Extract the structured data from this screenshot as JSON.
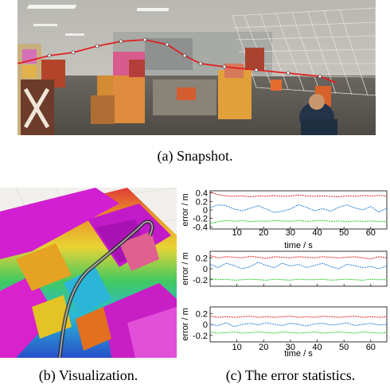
{
  "captions": {
    "a": "(a)  Snapshot.",
    "b": "(b)  Visualization.",
    "c": "(c)  The error statistics."
  },
  "colors": {
    "x_axis_error": "#e0201c",
    "y_axis_error": "#2a7fd6",
    "z_axis_error": "#22cc22",
    "trajectory": "#e02020"
  },
  "icons": [
    "photo-snapshot",
    "3d-map-visualization"
  ],
  "chart_data": [
    {
      "type": "line",
      "xlabel": "time / s",
      "ylabel": "error / m",
      "xticks": [
        "10",
        "20",
        "30",
        "40",
        "50",
        "60"
      ],
      "xlim": [
        0,
        66
      ],
      "yticks": [
        "0.4",
        "0.2",
        "0",
        "-0.2",
        "-0.4"
      ],
      "ylim": [
        -0.45,
        0.45
      ],
      "show_xticklabels": true,
      "series": [
        {
          "color": "#e0201c",
          "x": [
            0,
            3,
            6,
            9,
            12,
            15,
            18,
            21,
            24,
            27,
            30,
            33,
            36,
            39,
            42,
            45,
            48,
            51,
            54,
            57,
            60,
            63,
            66
          ],
          "values": [
            0.42,
            0.36,
            0.33,
            0.32,
            0.33,
            0.31,
            0.33,
            0.32,
            0.34,
            0.32,
            0.33,
            0.35,
            0.33,
            0.32,
            0.33,
            0.32,
            0.31,
            0.33,
            0.32,
            0.34,
            0.33,
            0.34,
            0.33
          ]
        },
        {
          "color": "#2a7fd6",
          "x": [
            0,
            3,
            6,
            9,
            12,
            15,
            18,
            21,
            24,
            27,
            30,
            33,
            36,
            39,
            42,
            45,
            48,
            51,
            54,
            57,
            60,
            63,
            66
          ],
          "values": [
            0.05,
            0.12,
            0.1,
            0.02,
            -0.02,
            0.04,
            0.1,
            0.02,
            -0.06,
            -0.03,
            0.02,
            0.12,
            0.06,
            -0.02,
            0.03,
            -0.03,
            0.06,
            0.12,
            0.05,
            0.0,
            0.08,
            -0.05,
            0.04
          ]
        },
        {
          "color": "#22cc22",
          "x": [
            0,
            3,
            6,
            9,
            12,
            15,
            18,
            21,
            24,
            27,
            30,
            33,
            36,
            39,
            42,
            45,
            48,
            51,
            54,
            57,
            60,
            63,
            66
          ],
          "values": [
            -0.32,
            -0.28,
            -0.25,
            -0.27,
            -0.25,
            -0.28,
            -0.26,
            -0.27,
            -0.25,
            -0.26,
            -0.27,
            -0.25,
            -0.27,
            -0.26,
            -0.25,
            -0.27,
            -0.26,
            -0.28,
            -0.26,
            -0.27,
            -0.26,
            -0.28,
            -0.27
          ]
        }
      ]
    },
    {
      "type": "line",
      "xlabel": "",
      "ylabel": "error / m",
      "xticks": [
        "10",
        "20",
        "30",
        "40",
        "50",
        "60"
      ],
      "xlim": [
        0,
        66
      ],
      "yticks": [
        "0.2",
        "0",
        "-0.2"
      ],
      "ylim": [
        -0.32,
        0.32
      ],
      "show_xticklabels": false,
      "series": [
        {
          "color": "#e0201c",
          "x": [
            0,
            3,
            6,
            9,
            12,
            15,
            18,
            21,
            24,
            27,
            30,
            33,
            36,
            39,
            42,
            45,
            48,
            51,
            54,
            57,
            60,
            63,
            66
          ],
          "values": [
            0.24,
            0.2,
            0.22,
            0.21,
            0.2,
            0.23,
            0.21,
            0.19,
            0.22,
            0.21,
            0.2,
            0.22,
            0.21,
            0.2,
            0.22,
            0.21,
            0.2,
            0.21,
            0.22,
            0.2,
            0.18,
            0.22,
            0.2
          ]
        },
        {
          "color": "#2a7fd6",
          "x": [
            0,
            3,
            6,
            9,
            12,
            15,
            18,
            21,
            24,
            27,
            30,
            33,
            36,
            39,
            42,
            45,
            48,
            51,
            54,
            57,
            60,
            63,
            66
          ],
          "values": [
            0.08,
            0.02,
            0.1,
            0.06,
            0.0,
            0.04,
            0.12,
            0.06,
            0.02,
            0.1,
            0.05,
            0.08,
            0.02,
            0.06,
            0.1,
            0.04,
            0.0,
            0.08,
            0.06,
            0.02,
            0.04,
            0.0,
            0.05
          ]
        },
        {
          "color": "#22cc22",
          "x": [
            0,
            3,
            6,
            9,
            12,
            15,
            18,
            21,
            24,
            27,
            30,
            33,
            36,
            39,
            42,
            45,
            48,
            51,
            54,
            57,
            60,
            63,
            66
          ],
          "values": [
            -0.18,
            -0.2,
            -0.19,
            -0.21,
            -0.2,
            -0.19,
            -0.2,
            -0.21,
            -0.19,
            -0.2,
            -0.21,
            -0.19,
            -0.2,
            -0.2,
            -0.19,
            -0.21,
            -0.2,
            -0.19,
            -0.2,
            -0.21,
            -0.19,
            -0.2,
            -0.2
          ]
        }
      ]
    },
    {
      "type": "line",
      "xlabel": "time / s",
      "ylabel": "error / m",
      "xticks": [
        "10",
        "20",
        "30",
        "40",
        "50",
        "60"
      ],
      "xlim": [
        0,
        66
      ],
      "yticks": [
        "0.2",
        "0",
        "-0.2"
      ],
      "ylim": [
        -0.32,
        0.32
      ],
      "show_xticklabels": true,
      "series": [
        {
          "color": "#e0201c",
          "x": [
            0,
            3,
            6,
            9,
            12,
            15,
            18,
            21,
            24,
            27,
            30,
            33,
            36,
            39,
            42,
            45,
            48,
            51,
            54,
            57,
            60,
            63,
            66
          ],
          "values": [
            0.15,
            0.13,
            0.14,
            0.13,
            0.14,
            0.15,
            0.13,
            0.14,
            0.13,
            0.14,
            0.15,
            0.13,
            0.14,
            0.13,
            0.15,
            0.14,
            0.13,
            0.14,
            0.15,
            0.13,
            0.14,
            0.13,
            0.14
          ]
        },
        {
          "color": "#2a7fd6",
          "x": [
            0,
            3,
            6,
            9,
            12,
            15,
            18,
            21,
            24,
            27,
            30,
            33,
            36,
            39,
            42,
            45,
            48,
            51,
            54,
            57,
            60,
            63,
            66
          ],
          "values": [
            0.0,
            -0.02,
            0.03,
            -0.04,
            0.0,
            0.02,
            -0.01,
            0.03,
            0.0,
            -0.02,
            0.02,
            0.0,
            -0.03,
            0.01,
            0.02,
            -0.01,
            0.0,
            0.03,
            -0.02,
            0.0,
            0.02,
            -0.01,
            0.0
          ]
        },
        {
          "color": "#22cc22",
          "x": [
            0,
            3,
            6,
            9,
            12,
            15,
            18,
            21,
            24,
            27,
            30,
            33,
            36,
            39,
            42,
            45,
            48,
            51,
            54,
            57,
            60,
            63,
            66
          ],
          "values": [
            -0.14,
            -0.16,
            -0.15,
            -0.14,
            -0.16,
            -0.15,
            -0.14,
            -0.15,
            -0.16,
            -0.14,
            -0.15,
            -0.16,
            -0.15,
            -0.14,
            -0.16,
            -0.15,
            -0.14,
            -0.15,
            -0.16,
            -0.14,
            -0.15,
            -0.16,
            -0.15
          ]
        }
      ]
    }
  ]
}
